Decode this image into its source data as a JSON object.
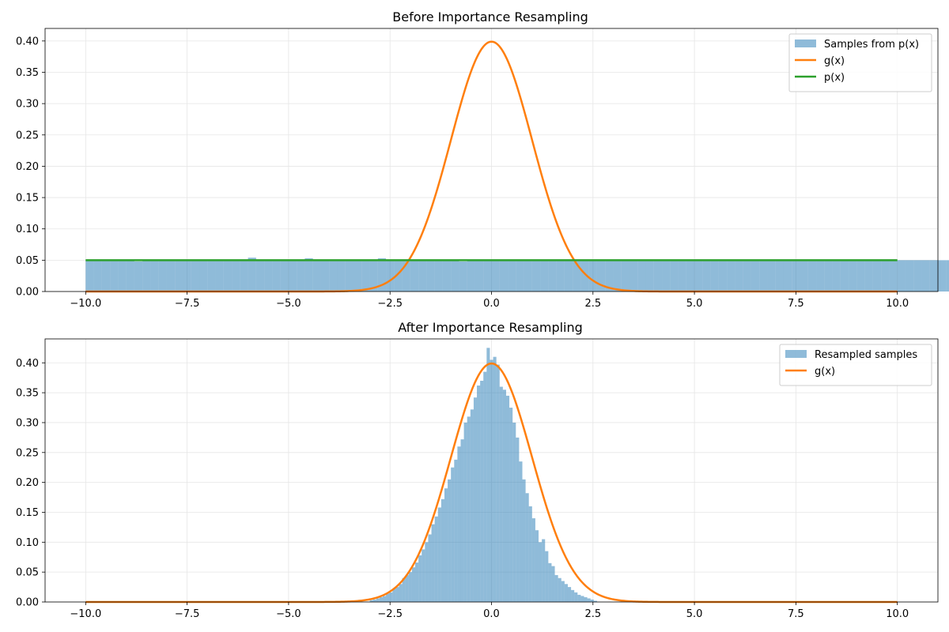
{
  "colors": {
    "hist": "#1f77b4",
    "g": "#ff7f0e",
    "p": "#2ca02c",
    "grid": "#e6e6e6",
    "axis": "#000000"
  },
  "chart_data": [
    {
      "type": "bar",
      "title": "Before Importance Resampling",
      "xlim": [
        -11.0,
        11.0
      ],
      "ylim": [
        0,
        0.42
      ],
      "xticks": [
        -10.0,
        -7.5,
        -5.0,
        -2.5,
        0.0,
        2.5,
        5.0,
        7.5,
        10.0
      ],
      "xtick_labels": [
        "−10.0",
        "−7.5",
        "−5.0",
        "−2.5",
        "0.0",
        "2.5",
        "5.0",
        "7.5",
        "10.0"
      ],
      "yticks": [
        0.0,
        0.05,
        0.1,
        0.15,
        0.2,
        0.25,
        0.3,
        0.35,
        0.4
      ],
      "ytick_labels": [
        "0.00",
        "0.05",
        "0.10",
        "0.15",
        "0.20",
        "0.25",
        "0.30",
        "0.35",
        "0.40"
      ],
      "grid": true,
      "legend_position": "top-right",
      "histogram": {
        "name": "Samples from p(x)",
        "bin_start": -10.0,
        "bin_width": 0.2,
        "values": [
          0.05,
          0.05,
          0.049,
          0.05,
          0.05,
          0.05,
          0.048,
          0.05,
          0.05,
          0.05,
          0.05,
          0.05,
          0.051,
          0.05,
          0.05,
          0.05,
          0.05,
          0.05,
          0.05,
          0.05,
          0.054,
          0.05,
          0.05,
          0.05,
          0.05,
          0.05,
          0.05,
          0.053,
          0.05,
          0.05,
          0.05,
          0.05,
          0.05,
          0.05,
          0.05,
          0.05,
          0.053,
          0.05,
          0.05,
          0.05,
          0.05,
          0.05,
          0.05,
          0.05,
          0.05,
          0.05,
          0.048,
          0.05,
          0.05,
          0.05,
          0.05,
          0.05,
          0.05,
          0.05,
          0.05,
          0.05,
          0.05,
          0.05,
          0.05,
          0.05,
          0.05,
          0.05,
          0.05,
          0.05,
          0.05,
          0.05,
          0.05,
          0.05,
          0.05,
          0.05,
          0.05,
          0.05,
          0.05,
          0.05,
          0.05,
          0.05,
          0.05,
          0.05,
          0.05,
          0.05,
          0.05,
          0.05,
          0.05,
          0.05,
          0.05,
          0.05,
          0.05,
          0.05,
          0.05,
          0.05,
          0.05,
          0.05,
          0.05,
          0.05,
          0.05,
          0.05,
          0.05,
          0.05,
          0.05,
          0.05,
          0.05,
          0.05,
          0.05,
          0.05,
          0.05,
          0.05,
          0.05,
          0.05,
          0.05,
          0.05,
          0.05,
          0.05,
          0.05,
          0.05,
          0.05,
          0.05,
          0.05,
          0.05,
          0.05,
          0.05,
          0.05,
          0.05,
          0.05,
          0.05,
          0.05,
          0.05,
          0.05,
          0.05,
          0.05,
          0.05,
          0.05,
          0.05,
          0.05,
          0.05,
          0.05,
          0.05,
          0.05,
          0.05,
          0.05,
          0.05,
          0.05,
          0.05,
          0.05,
          0.05,
          0.05,
          0.05,
          0.05,
          0.05,
          0.05,
          0.05,
          0.05,
          0.05,
          0.053,
          0.05,
          0.05,
          0.05,
          0.05,
          0.05,
          0.05,
          0.05,
          0.05,
          0.05,
          0.054,
          0.05,
          0.05,
          0.05,
          0.05,
          0.05,
          0.05,
          0.05,
          0.05,
          0.05,
          0.053,
          0.05,
          0.05,
          0.05,
          0.05,
          0.05,
          0.05,
          0.05,
          0.05,
          0.05,
          0.053,
          0.05,
          0.05,
          0.05,
          0.05,
          0.05,
          0.05,
          0.05,
          0.05,
          0.05,
          0.05,
          0.05,
          0.05,
          0.05,
          0.05,
          0.05,
          0.05,
          0.05,
          0.05,
          0.05,
          0.05,
          0.05,
          0.05,
          0.05,
          0.05,
          0.05,
          0.05,
          0.05,
          0.05,
          0.05,
          0.05,
          0.05,
          0.05
        ]
      },
      "lines": [
        {
          "name": "g(x)",
          "kind": "normal_pdf",
          "mean": 0,
          "sd": 1,
          "x_range": [
            -10,
            10
          ]
        },
        {
          "name": "p(x)",
          "kind": "constant",
          "value": 0.05,
          "x_range": [
            -10,
            10
          ]
        }
      ]
    },
    {
      "type": "bar",
      "title": "After Importance Resampling",
      "xlim": [
        -11.0,
        11.0
      ],
      "ylim": [
        0,
        0.44
      ],
      "xticks": [
        -10.0,
        -7.5,
        -5.0,
        -2.5,
        0.0,
        2.5,
        5.0,
        7.5,
        10.0
      ],
      "xtick_labels": [
        "−10.0",
        "−7.5",
        "−5.0",
        "−2.5",
        "0.0",
        "2.5",
        "5.0",
        "7.5",
        "10.0"
      ],
      "yticks": [
        0.0,
        0.05,
        0.1,
        0.15,
        0.2,
        0.25,
        0.3,
        0.35,
        0.4
      ],
      "ytick_labels": [
        "0.00",
        "0.05",
        "0.10",
        "0.15",
        "0.20",
        "0.25",
        "0.30",
        "0.35",
        "0.40"
      ],
      "grid": true,
      "legend_position": "top-right",
      "histogram": {
        "name": "Resampled samples",
        "bin_start": -3.0,
        "bin_width": 0.08,
        "values": [
          0.003,
          0.004,
          0.006,
          0.008,
          0.01,
          0.014,
          0.016,
          0.022,
          0.025,
          0.03,
          0.04,
          0.045,
          0.05,
          0.058,
          0.066,
          0.078,
          0.088,
          0.1,
          0.113,
          0.13,
          0.143,
          0.158,
          0.172,
          0.19,
          0.205,
          0.225,
          0.238,
          0.26,
          0.272,
          0.3,
          0.31,
          0.322,
          0.342,
          0.362,
          0.37,
          0.385,
          0.425,
          0.405,
          0.41,
          0.397,
          0.36,
          0.355,
          0.345,
          0.325,
          0.3,
          0.275,
          0.235,
          0.205,
          0.182,
          0.16,
          0.14,
          0.12,
          0.1,
          0.105,
          0.085,
          0.065,
          0.06,
          0.045,
          0.04,
          0.035,
          0.03,
          0.025,
          0.02,
          0.016,
          0.012,
          0.01,
          0.008,
          0.006,
          0.004,
          0.002
        ]
      },
      "lines": [
        {
          "name": "g(x)",
          "kind": "normal_pdf",
          "mean": 0,
          "sd": 1,
          "x_range": [
            -10,
            10
          ]
        }
      ]
    }
  ]
}
